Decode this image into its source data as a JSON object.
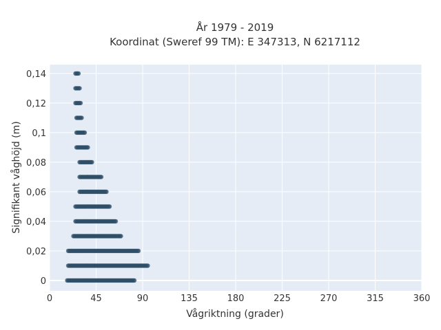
{
  "chart_data": {
    "type": "scatter",
    "title_line1": "År 1979 - 2019",
    "title_line2": "Koordinat (Sweref 99 TM): E 347313, N 6217112",
    "xlabel": "Vågriktning (grader)",
    "ylabel": "Signifikant våghöjd (m)",
    "xlim": [
      0,
      360
    ],
    "ylim": [
      -0.007,
      0.146
    ],
    "x_ticks": [
      0,
      45,
      90,
      135,
      180,
      225,
      270,
      315,
      360
    ],
    "x_tick_labels": [
      "0",
      "45",
      "90",
      "135",
      "180",
      "225",
      "270",
      "315",
      "360"
    ],
    "y_ticks": [
      0,
      0.02,
      0.04,
      0.06,
      0.08,
      0.1,
      0.12,
      0.14
    ],
    "y_tick_labels": [
      "0",
      "0,02",
      "0,04",
      "0,06",
      "0,08",
      "0,1",
      "0,12",
      "0,14"
    ],
    "grid": true,
    "marker_color": "#2f4f68",
    "plot_background": "#e5ecf6",
    "point_bands": [
      {
        "y": 0.0,
        "x_min": 17,
        "x_max": 82
      },
      {
        "y": 0.01,
        "x_min": 18,
        "x_max": 95
      },
      {
        "y": 0.02,
        "x_min": 18,
        "x_max": 86
      },
      {
        "y": 0.03,
        "x_min": 23,
        "x_max": 69
      },
      {
        "y": 0.04,
        "x_min": 25,
        "x_max": 64
      },
      {
        "y": 0.05,
        "x_min": 25,
        "x_max": 58
      },
      {
        "y": 0.06,
        "x_min": 29,
        "x_max": 55
      },
      {
        "y": 0.07,
        "x_min": 29,
        "x_max": 50
      },
      {
        "y": 0.08,
        "x_min": 29,
        "x_max": 41
      },
      {
        "y": 0.09,
        "x_min": 26,
        "x_max": 37
      },
      {
        "y": 0.1,
        "x_min": 26,
        "x_max": 34
      },
      {
        "y": 0.11,
        "x_min": 26,
        "x_max": 31
      },
      {
        "y": 0.12,
        "x_min": 25,
        "x_max": 30
      },
      {
        "y": 0.13,
        "x_min": 25,
        "x_max": 29
      },
      {
        "y": 0.14,
        "x_min": 25,
        "x_max": 28
      }
    ]
  }
}
